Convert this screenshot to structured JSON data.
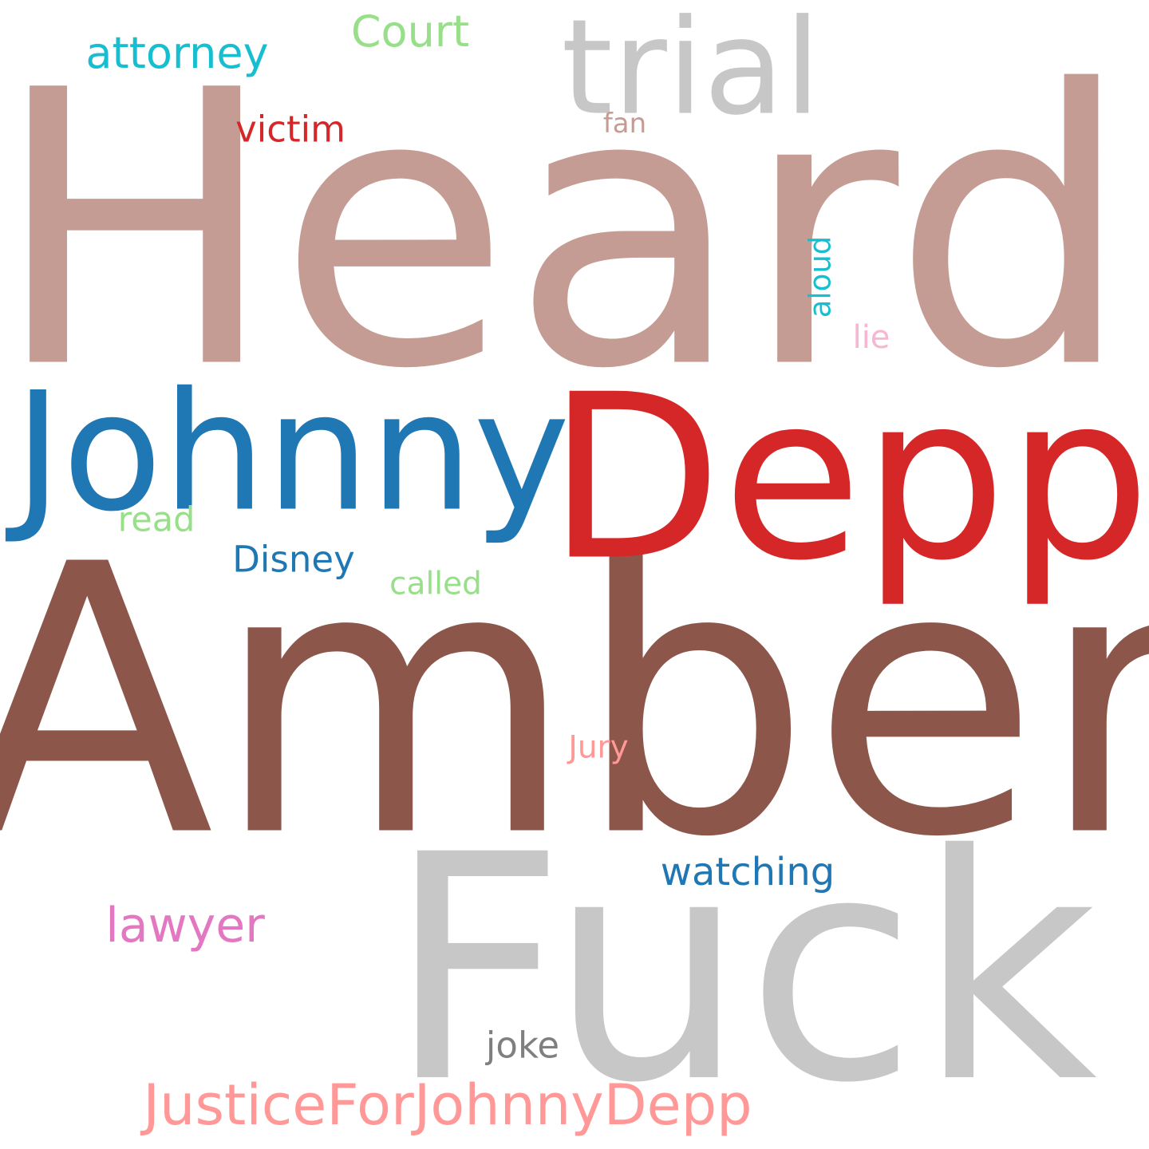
{
  "words": [
    {
      "text": "Heard",
      "color": "#c49c94"
    },
    {
      "text": "Amber",
      "color": "#8c564b"
    },
    {
      "text": "Fuck",
      "color": "#c7c7c7"
    },
    {
      "text": "Depp",
      "color": "#d62728"
    },
    {
      "text": "Johnny",
      "color": "#1f77b4"
    },
    {
      "text": "trial",
      "color": "#c7c7c7"
    },
    {
      "text": "JusticeForJohnnyDepp",
      "color": "#ff9896"
    },
    {
      "text": "attorney",
      "color": "#17becf"
    },
    {
      "text": "Court",
      "color": "#98df8a"
    },
    {
      "text": "watching",
      "color": "#1f77b4"
    },
    {
      "text": "lawyer",
      "color": "#e377c2"
    },
    {
      "text": "victim",
      "color": "#d62728"
    },
    {
      "text": "Disney",
      "color": "#1f77b4"
    },
    {
      "text": "read",
      "color": "#98df8a"
    },
    {
      "text": "called",
      "color": "#98df8a"
    },
    {
      "text": "joke",
      "color": "#7f7f7f"
    },
    {
      "text": "aloud",
      "color": "#17becf"
    },
    {
      "text": "Jury",
      "color": "#ff9896"
    },
    {
      "text": "lie",
      "color": "#f7b6d2"
    },
    {
      "text": "fan",
      "color": "#c49c94"
    }
  ]
}
